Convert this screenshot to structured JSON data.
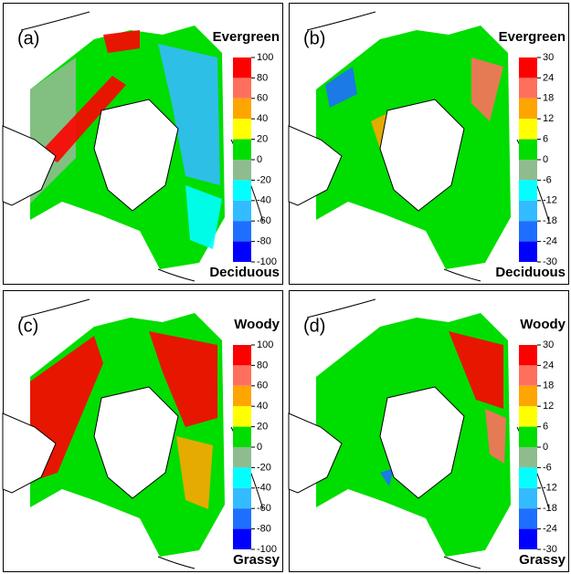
{
  "panels": [
    {
      "label": "(a)",
      "top_label": "Evergreen",
      "bottom_label": "Deciduous",
      "colorbar": {
        "ticks": [
          100,
          80,
          60,
          40,
          20,
          0,
          -20,
          -40,
          -60,
          -80,
          -100
        ],
        "colors": [
          "#ff0000",
          "#ff6f5e",
          "#ffa500",
          "#ffff00",
          "#00dd00",
          "#8fbc8f",
          "#00ffff",
          "#33bbff",
          "#1e6fff",
          "#0000ff"
        ]
      }
    },
    {
      "label": "(b)",
      "top_label": "Evergreen",
      "bottom_label": "Deciduous",
      "colorbar": {
        "ticks": [
          30,
          24,
          18,
          12,
          6,
          0,
          -6,
          -12,
          -18,
          -24,
          -30
        ],
        "colors": [
          "#ff0000",
          "#ff6f5e",
          "#ffa500",
          "#ffff00",
          "#00dd00",
          "#8fbc8f",
          "#00ffff",
          "#33bbff",
          "#1e6fff",
          "#0000ff"
        ]
      }
    },
    {
      "label": "(c)",
      "top_label": "Woody",
      "bottom_label": "Grassy",
      "colorbar": {
        "ticks": [
          100,
          80,
          60,
          40,
          20,
          0,
          -20,
          -40,
          -60,
          -80,
          -100
        ],
        "colors": [
          "#ff0000",
          "#ff6f5e",
          "#ffa500",
          "#ffff00",
          "#00dd00",
          "#8fbc8f",
          "#00ffff",
          "#33bbff",
          "#1e6fff",
          "#0000ff"
        ]
      }
    },
    {
      "label": "(d)",
      "top_label": "Woody",
      "bottom_label": "Grassy",
      "colorbar": {
        "ticks": [
          30,
          24,
          18,
          12,
          6,
          0,
          -6,
          -12,
          -18,
          -24,
          -30
        ],
        "colors": [
          "#ff0000",
          "#ff6f5e",
          "#ffa500",
          "#ffff00",
          "#00dd00",
          "#8fbc8f",
          "#00ffff",
          "#33bbff",
          "#1e6fff",
          "#0000ff"
        ]
      }
    }
  ]
}
